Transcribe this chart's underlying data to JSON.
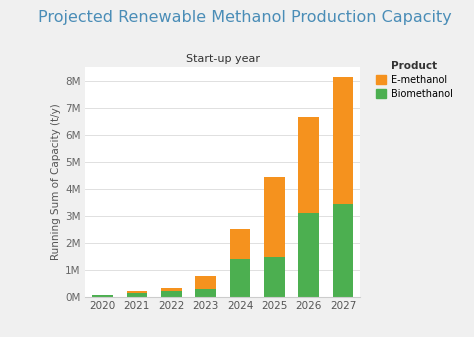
{
  "title": "Projected Renewable Methanol Production Capacity",
  "xlabel": "Start-up year",
  "ylabel": "Running Sum of Capacity (t/y)",
  "years": [
    2020,
    2021,
    2022,
    2023,
    2024,
    2025,
    2026,
    2027
  ],
  "biomethanol": [
    0.05,
    0.15,
    0.22,
    0.27,
    1.4,
    1.45,
    3.1,
    3.42
  ],
  "e_methanol": [
    0.01,
    0.05,
    0.1,
    0.5,
    1.1,
    3.0,
    3.55,
    4.72
  ],
  "bio_color": "#4caf50",
  "emeth_color": "#f5921e",
  "title_color": "#4a8db7",
  "background_color": "#f0f0f0",
  "plot_bg_color": "#ffffff",
  "ylim": [
    0,
    8.5
  ],
  "yticks": [
    0,
    1,
    2,
    3,
    4,
    5,
    6,
    7,
    8
  ],
  "ytick_labels": [
    "0M",
    "1M",
    "2M",
    "3M",
    "4M",
    "5M",
    "6M",
    "7M",
    "8M"
  ],
  "legend_title": "Product",
  "legend_labels": [
    "E-methanol",
    "Biomethanol"
  ],
  "title_fontsize": 11.5,
  "axis_label_fontsize": 7.5,
  "tick_fontsize": 7.5,
  "xlabel_fontsize": 8
}
